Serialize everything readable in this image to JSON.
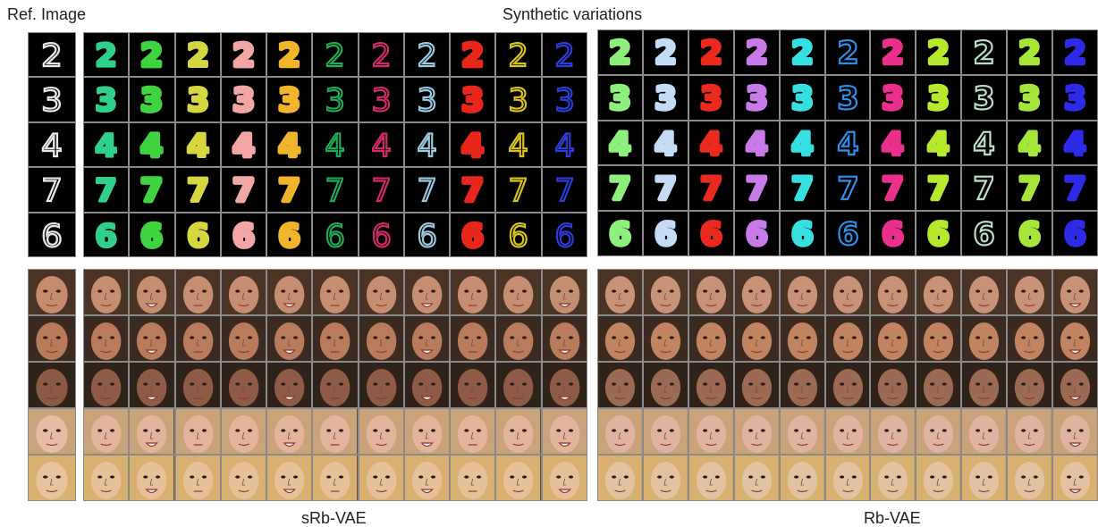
{
  "labels": {
    "ref": "Ref. Image",
    "synthetic": "Synthetic variations",
    "left_caption": "sRb-VAE",
    "right_caption": "Rb-VAE"
  },
  "digits": [
    "2",
    "3",
    "4",
    "7",
    "6"
  ],
  "digit_colors": {
    "ref": "#e8e8e8",
    "srb": [
      "#2fd08a",
      "#3fd43f",
      "#d6d640",
      "#f2a6a6",
      "#f0b52a",
      "#1faa55",
      "#d02a6a",
      "#9cc9e0",
      "#e8261b",
      "#d8c21c",
      "#2c3dd8"
    ],
    "rb": [
      "#8ef07c",
      "#c4dcf6",
      "#ea2a1e",
      "#c87ae8",
      "#36e0e0",
      "#2f8fe8",
      "#ea2f8c",
      "#b6e82e",
      "#b8e0c8",
      "#a6e63a",
      "#2d2ae8"
    ]
  },
  "face_tones": {
    "ref": [
      "#c58c6c",
      "#b87a58",
      "#8a5a44",
      "#e6bca4",
      "#e8c49e"
    ],
    "srb": [
      "#c68e70",
      "#b87c5c",
      "#8e5c46",
      "#e2b49c",
      "#e6c098"
    ],
    "rb": [
      "#c79276",
      "#c08460",
      "#9a6a52",
      "#deb4a0",
      "#e2c2a0"
    ],
    "hair": [
      "#4a3426",
      "#3a2a20",
      "#2e2219",
      "#c9a47a",
      "#d8b070"
    ]
  }
}
